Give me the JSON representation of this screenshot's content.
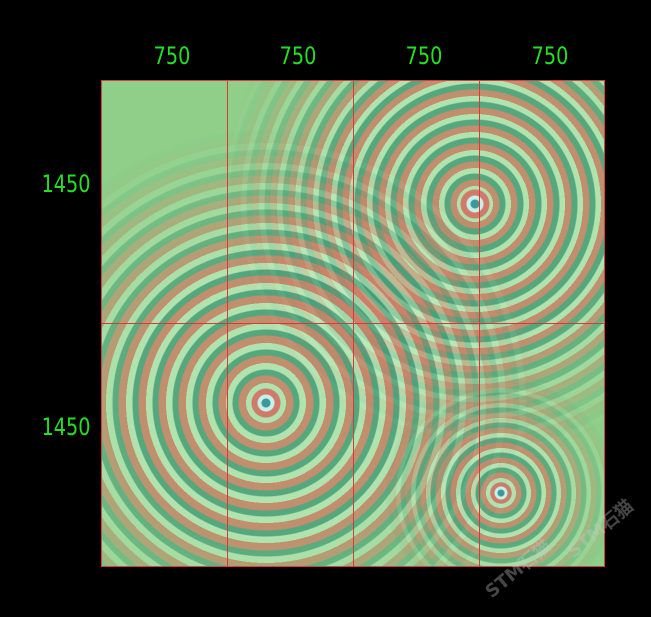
{
  "top_dimensions": [
    "750",
    "750",
    "750",
    "750"
  ],
  "left_dimensions": [
    "1450",
    "1450"
  ],
  "watermark": "STM石猫",
  "colors": {
    "dimension_text": "#22e022",
    "grid_lines": "#d83a3a",
    "background": "#000000",
    "field": "#8fcf8a"
  }
}
